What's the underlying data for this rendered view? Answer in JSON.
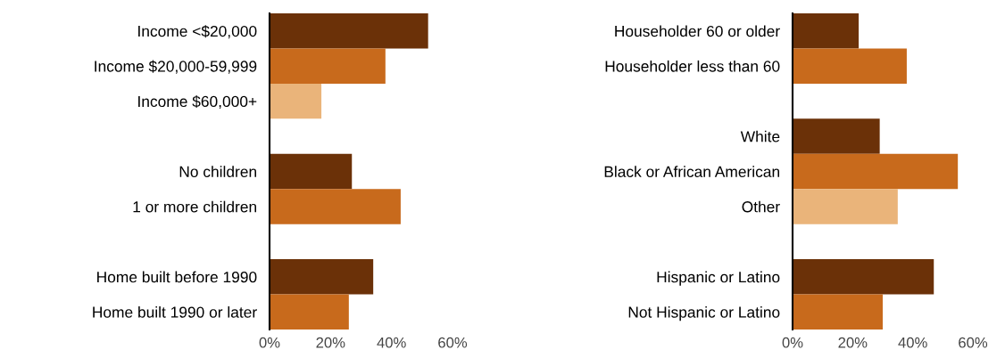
{
  "chart_data": [
    {
      "type": "bar",
      "orientation": "horizontal",
      "categories": [
        "Income <$20,000",
        "Income $20,000-59,999",
        "Income $60,000+",
        null,
        "No children",
        "1 or more children",
        null,
        "Home built before 1990",
        "Home built 1990 or later"
      ],
      "values": [
        52,
        38,
        17,
        null,
        27,
        43,
        null,
        34,
        26
      ],
      "colors": [
        "#6b3108",
        "#c86a1c",
        "#eab47a",
        null,
        "#6b3108",
        "#c86a1c",
        null,
        "#6b3108",
        "#c86a1c"
      ],
      "xlim": [
        0,
        60
      ],
      "xticks": [
        {
          "value": 0,
          "label": "0%"
        },
        {
          "value": 20,
          "label": "20%"
        },
        {
          "value": 40,
          "label": "40%"
        },
        {
          "value": 60,
          "label": "60%"
        }
      ],
      "grid": false
    },
    {
      "type": "bar",
      "orientation": "horizontal",
      "categories": [
        "Householder 60 or older",
        "Householder less than 60",
        null,
        "White",
        "Black or African American",
        "Other",
        null,
        "Hispanic or Latino",
        "Not Hispanic or Latino"
      ],
      "values": [
        22,
        38,
        null,
        29,
        55,
        35,
        null,
        47,
        30
      ],
      "colors": [
        "#6b3108",
        "#c86a1c",
        null,
        "#6b3108",
        "#c86a1c",
        "#eab47a",
        null,
        "#6b3108",
        "#c86a1c"
      ],
      "xlim": [
        0,
        60
      ],
      "xticks": [
        {
          "value": 0,
          "label": "0%"
        },
        {
          "value": 20,
          "label": "20%"
        },
        {
          "value": 40,
          "label": "40%"
        },
        {
          "value": 60,
          "label": "60%"
        }
      ],
      "grid": false
    }
  ]
}
